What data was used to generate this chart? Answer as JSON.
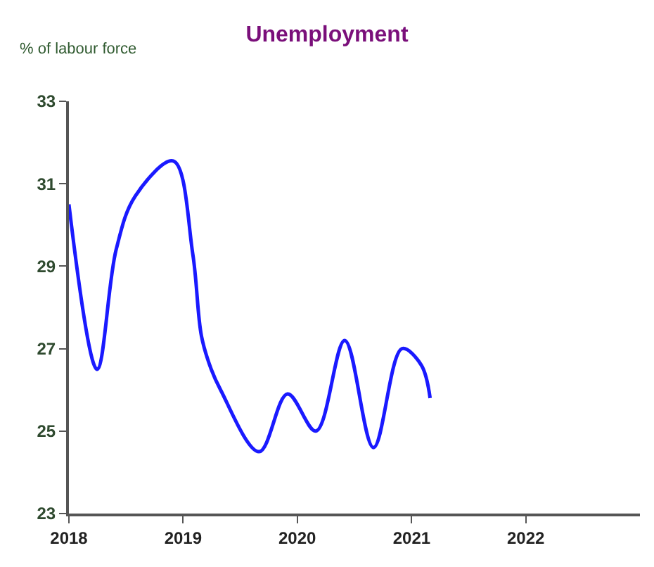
{
  "chart_data": {
    "type": "line",
    "title": "Unemployment",
    "ylabel": "% of labour force",
    "x": [
      "2018-01",
      "2018-04",
      "2018-06",
      "2018-08",
      "2018-12",
      "2019-02",
      "2019-03",
      "2019-04",
      "2019-05",
      "2019-09",
      "2019-12",
      "2020-03",
      "2020-06",
      "2020-09",
      "2020-12",
      "2021-02",
      "2021-03"
    ],
    "series": [
      {
        "color": "#1a1aff",
        "values": [
          30.5,
          26.5,
          29.4,
          30.7,
          31.55,
          29.3,
          27.3,
          26.5,
          26,
          24.5,
          25.9,
          25,
          27.2,
          24.6,
          27,
          26.6,
          25.8
        ]
      }
    ],
    "xlim": [
      "2018",
      "2023"
    ],
    "xticks": [
      {
        "value": "2018",
        "label": "2018"
      },
      {
        "value": "2019",
        "label": "2019"
      },
      {
        "value": "2020",
        "label": "2020"
      },
      {
        "value": "2021",
        "label": "2021"
      },
      {
        "value": "2022",
        "label": "2022"
      }
    ],
    "ylim": [
      23,
      33
    ],
    "yticks": [
      23,
      25,
      27,
      29,
      31,
      33
    ],
    "grid": false
  }
}
